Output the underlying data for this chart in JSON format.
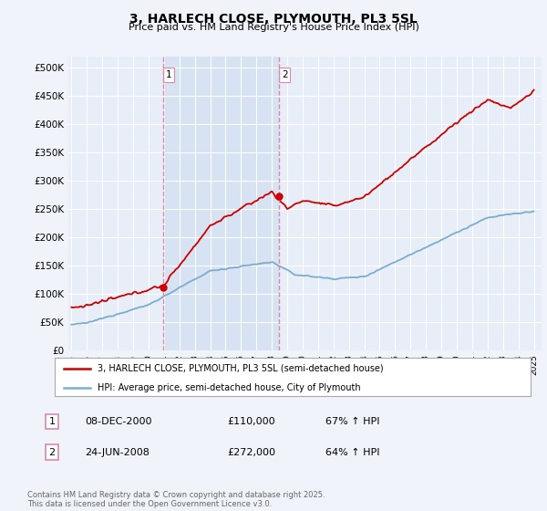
{
  "title": "3, HARLECH CLOSE, PLYMOUTH, PL3 5SL",
  "subtitle": "Price paid vs. HM Land Registry's House Price Index (HPI)",
  "ylim": [
    0,
    520000
  ],
  "yticks": [
    0,
    50000,
    100000,
    150000,
    200000,
    250000,
    300000,
    350000,
    400000,
    450000,
    500000
  ],
  "ytick_labels": [
    "£0",
    "£50K",
    "£100K",
    "£150K",
    "£200K",
    "£250K",
    "£300K",
    "£350K",
    "£400K",
    "£450K",
    "£500K"
  ],
  "bg_color": "#f0f4fa",
  "plot_bg": "#e8eef8",
  "red_color": "#cc0000",
  "blue_color": "#7aaecc",
  "shade_color": "#d0dff0",
  "vline_color": "#dd88aa",
  "purchase1_x": 2000.94,
  "purchase1_y": 110000,
  "purchase2_x": 2008.48,
  "purchase2_y": 272000,
  "legend_red": "3, HARLECH CLOSE, PLYMOUTH, PL3 5SL (semi-detached house)",
  "legend_blue": "HPI: Average price, semi-detached house, City of Plymouth",
  "table_row1": [
    "1",
    "08-DEC-2000",
    "£110,000",
    "67% ↑ HPI"
  ],
  "table_row2": [
    "2",
    "24-JUN-2008",
    "£272,000",
    "64% ↑ HPI"
  ],
  "footer": "Contains HM Land Registry data © Crown copyright and database right 2025.\nThis data is licensed under the Open Government Licence v3.0.",
  "xtick_years": [
    1995,
    1996,
    1997,
    1998,
    1999,
    2000,
    2001,
    2002,
    2003,
    2004,
    2005,
    2006,
    2007,
    2008,
    2009,
    2010,
    2011,
    2012,
    2013,
    2014,
    2015,
    2016,
    2017,
    2018,
    2019,
    2020,
    2021,
    2022,
    2023,
    2024,
    2025
  ]
}
